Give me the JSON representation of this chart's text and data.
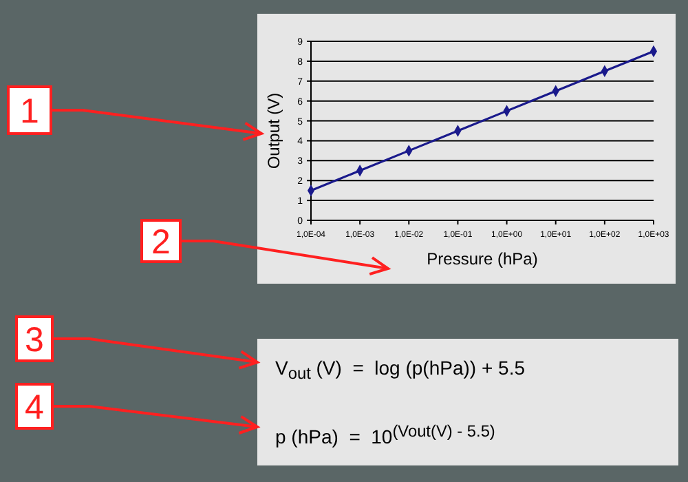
{
  "chart_data": {
    "type": "line",
    "xlabel": "Pressure (hPa)",
    "ylabel": "Output (V)",
    "categories": [
      "1,0E-04",
      "1,0E-03",
      "1,0E-02",
      "1,0E-01",
      "1,0E+00",
      "1,0E+01",
      "1,0E+02",
      "1,0E+03"
    ],
    "series": [
      {
        "color": "#1a1a8c",
        "values": [
          1.5,
          2.5,
          3.5,
          4.5,
          5.5,
          6.5,
          7.5,
          8.5
        ]
      }
    ],
    "ylim": [
      0,
      9
    ],
    "yticks": [
      0,
      1,
      2,
      3,
      4,
      5,
      6,
      7,
      8,
      9
    ],
    "grid": "y",
    "marker": "diamond",
    "line_style": "solid",
    "annotations": [
      "1",
      "2",
      "3",
      "4",
      "V$_{out}$ (V)  =  log (p(hPa)) + 5.5",
      "p (hPa)  =  10$^{(Vout(V) - 5.5)}$"
    ]
  }
}
